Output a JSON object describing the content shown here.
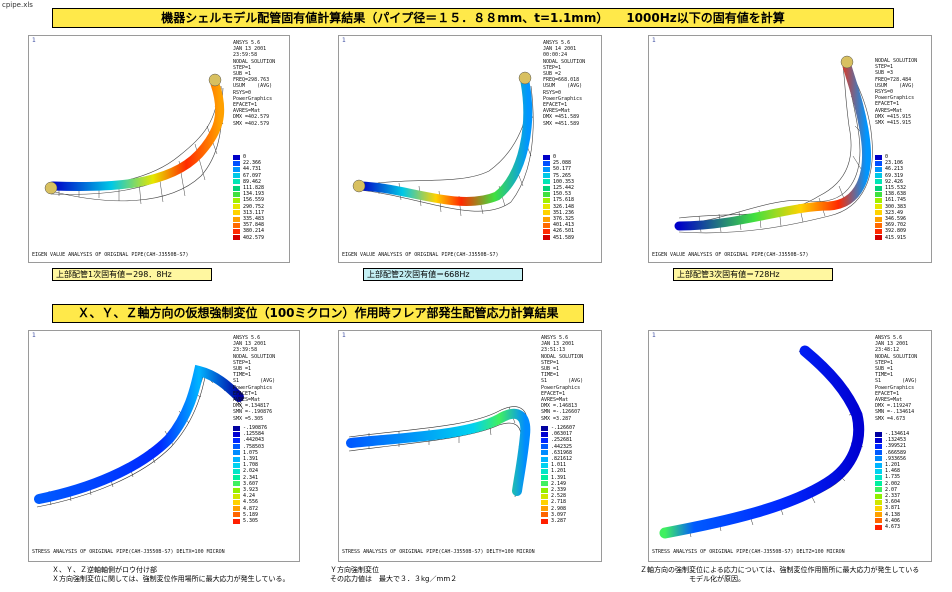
{
  "file_label": "cpipe.xls",
  "header_banner": "機器シェルモデル配管固有値計算結果（パイプ径＝１５．８８mm、t=1.1mm）　　1000Hz以下の固有値を計算",
  "stress_banner": "Ｘ、Ｙ、Ｚ軸方向の仮想強制変位（100ミクロン）作用時フレア部発生配管応力計算結果",
  "mode_panels": [
    {
      "corner": "1",
      "info": [
        "ANSYS 5.6",
        "JAN 13 2001",
        "23:59:58",
        "NODAL SOLUTION",
        "STEP=1",
        "SUB =1",
        "FREQ=298.763",
        "USUM    (AVG)",
        "RSYS=0",
        "PowerGraphics",
        "EFACET=1",
        "AVRES=Mat",
        "DMX =402.579",
        "SMX =402.579"
      ],
      "legend": [
        "0",
        "22.366",
        "44.731",
        "67.097",
        "89.462",
        "111.828",
        "134.193",
        "156.559",
        "290.752",
        "313.117",
        "335.483",
        "357.848",
        "380.214",
        "402.579"
      ],
      "footer": "EIGEN VALUE ANALYSIS OF ORIGINAL PIPE(CAH-J3550B-S7)",
      "freq_label": "上部配管1次固有値＝298．8Hz",
      "freq_bg": "#fff7a0"
    },
    {
      "corner": "1",
      "info": [
        "ANSYS 5.6",
        "JAN 14 2001",
        "00:00:24",
        "NODAL SOLUTION",
        "STEP=1",
        "SUB =2",
        "FREQ=668.018",
        "USUM    (AVG)",
        "RSYS=0",
        "PowerGraphics",
        "EFACET=1",
        "AVRES=Mat",
        "DMX =451.589",
        "SMX =451.589"
      ],
      "legend": [
        "0",
        "25.088",
        "50.177",
        "75.265",
        "100.353",
        "125.442",
        "150.53",
        "175.618",
        "326.148",
        "351.236",
        "376.325",
        "401.413",
        "426.501",
        "451.589"
      ],
      "footer": "EIGEN VALUE ANALYSIS OF ORIGINAL PIPE(CAH-J3550B-S7)",
      "freq_label": "上部配管2次固有値＝668Hz",
      "freq_bg": "#c4f0f4"
    },
    {
      "corner": "1",
      "info": [
        "NODAL SOLUTION",
        "STEP=1",
        "SUB =3",
        "FREQ=728.484",
        "USUM    (AVG)",
        "RSYS=0",
        "PowerGraphics",
        "EFACET=1",
        "AVRES=Mat",
        "DMX =415.915",
        "SMX =415.915"
      ],
      "legend": [
        "0",
        "23.106",
        "46.213",
        "69.319",
        "92.426",
        "115.532",
        "138.638",
        "161.745",
        "300.383",
        "323.49",
        "346.596",
        "369.702",
        "392.809",
        "415.915"
      ],
      "footer": "EIGEN VALUE ANALYSIS OF ORIGINAL PIPE(CAH-J3550B-S7)",
      "freq_label": "上部配管3次固有値＝728Hz",
      "freq_bg": "#fff7a0"
    }
  ],
  "stress_panels": [
    {
      "corner": "1",
      "info": [
        "ANSYS 5.6",
        "JAN 13 2001",
        "23:39:58",
        "NODAL SOLUTION",
        "STEP=1",
        "SUB =1",
        "TIME=1",
        "S1       (AVG)",
        "PowerGraphics",
        "EFACET=1",
        "AVRES=Mat",
        "DMX =.134817",
        "SMN =-.190876",
        "SMX =5.305"
      ],
      "legend": [
        "-.190876",
        ".125584",
        ".442043",
        ".758503",
        "1.075",
        "1.391",
        "1.708",
        "2.024",
        "2.341",
        "3.607",
        "3.923",
        "4.24",
        "4.556",
        "4.872",
        "5.189",
        "5.305"
      ],
      "footer": "STRESS ANALYSIS OF ORIGINAL PIPE(CAH-J3550B-S7)  DELTX=100 MICRON",
      "note": "Ｘ、Ｙ、Ｚ逆軸軸側がロウ付け部\nＸ方向強制変位に関しては、強制変位作用場所に最大応力が発生している。"
    },
    {
      "corner": "1",
      "info": [
        "ANSYS 5.6",
        "JAN 13 2001",
        "23:51:13",
        "NODAL SOLUTION",
        "STEP=1",
        "SUB =1",
        "TIME=1",
        "S1       (AVG)",
        "PowerGraphics",
        "EFACET=1",
        "AVRES=Mat",
        "DMX =.146813",
        "SMN =-.126607",
        "SMX =3.287"
      ],
      "legend": [
        "-.126607",
        ".063017",
        ".252681",
        ".442325",
        ".631968",
        ".821612",
        "1.011",
        "1.201",
        "1.391",
        "2.149",
        "2.339",
        "2.528",
        "2.718",
        "2.908",
        "3.097",
        "3.287"
      ],
      "footer": "STRESS ANALYSIS OF ORIGINAL PIPE(CAH-J3550B-S7)  DELTY=100 MICRON",
      "note": "Ｙ方向強制変位\nその応力値は　最大で３．３kg／mm２"
    },
    {
      "corner": "1",
      "info": [
        "ANSYS 5.6",
        "JAN 13 2001",
        "23:48:12",
        "NODAL SOLUTION",
        "STEP=1",
        "SUB =1",
        "TIME=1",
        "S1       (AVG)",
        "PowerGraphics",
        "EFACET=1",
        "AVRES=Mat",
        "DMX =.119247",
        "SMN =-.134614",
        "SMX =4.673"
      ],
      "legend": [
        "-.134614",
        ".132453",
        ".399521",
        ".666589",
        ".933656",
        "1.201",
        "1.468",
        "1.735",
        "2.002",
        "2.07",
        "2.337",
        "3.604",
        "3.871",
        "4.138",
        "4.406",
        "4.673"
      ],
      "footer": "STRESS ANALYSIS OF ORIGINAL PIPE(CAH-J3550B-S7)  DELTZ=100 MICRON",
      "note": "Ｚ軸方向の強制変位による応力については、強制変位作用箇所に最大応力が発生している\n　　　　　　　モデル化が原因。"
    }
  ],
  "colors": {
    "banner": "#ffe94a",
    "mode_scale": [
      "#0000c8",
      "#0050ff",
      "#0096ff",
      "#00c8e6",
      "#00e6b4",
      "#00d27a",
      "#40e040",
      "#a0f000",
      "#e6e600",
      "#ffd200",
      "#ffa000",
      "#ff6a00",
      "#ff2a00",
      "#d20000"
    ],
    "stress_scale": [
      "#0000a0",
      "#0000d2",
      "#0028ff",
      "#005aff",
      "#008cff",
      "#00b4ff",
      "#00d2f0",
      "#00e6c8",
      "#00f0a0",
      "#40f060",
      "#90f000",
      "#d0e600",
      "#ffd200",
      "#ffa000",
      "#ff6400",
      "#ff2000"
    ]
  }
}
